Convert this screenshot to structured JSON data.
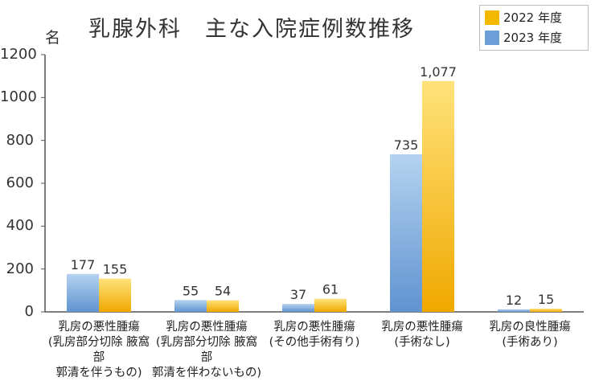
{
  "title": "乳腺外科　主な入院症例数推移",
  "unit": "名",
  "legend": [
    {
      "label": "2022 年度",
      "color": "#f5b800"
    },
    {
      "label": "2023 年度",
      "color": "#6c9fd8"
    }
  ],
  "colors": {
    "s2022_top": "#ffe27a",
    "s2022_bottom": "#f0a800",
    "s2023_top": "#b5d3f0",
    "s2023_bottom": "#5f93d0",
    "axis": "#555555",
    "grid": "#999999"
  },
  "chart_data": {
    "type": "bar",
    "title": "乳腺外科　主な入院症例数推移",
    "ylabel": "名",
    "ylim": [
      0,
      1200
    ],
    "yticks": [
      0,
      200,
      400,
      600,
      800,
      1000,
      1200
    ],
    "grid": false,
    "legend_position": "top-right",
    "categories": [
      [
        "乳房の悪性腫瘍",
        "(乳房部分切除 腋窩部",
        "郭清を伴うもの)"
      ],
      [
        "乳房の悪性腫瘍",
        "(乳房部分切除 腋窩部",
        "郭清を伴わないもの)"
      ],
      [
        "乳房の悪性腫瘍",
        "(その他手術有り)"
      ],
      [
        "乳房の悪性腫瘍",
        "(手術なし)"
      ],
      [
        "乳房の良性腫瘍",
        "(手術あり)"
      ]
    ],
    "series": [
      {
        "name": "2023 年度",
        "values": [
          177,
          55,
          37,
          735,
          12
        ],
        "labels": [
          "177",
          "55",
          "37",
          "735",
          "12"
        ]
      },
      {
        "name": "2022 年度",
        "values": [
          155,
          54,
          61,
          1077,
          15
        ],
        "labels": [
          "155",
          "54",
          "61",
          "1,077",
          "15"
        ]
      }
    ]
  }
}
